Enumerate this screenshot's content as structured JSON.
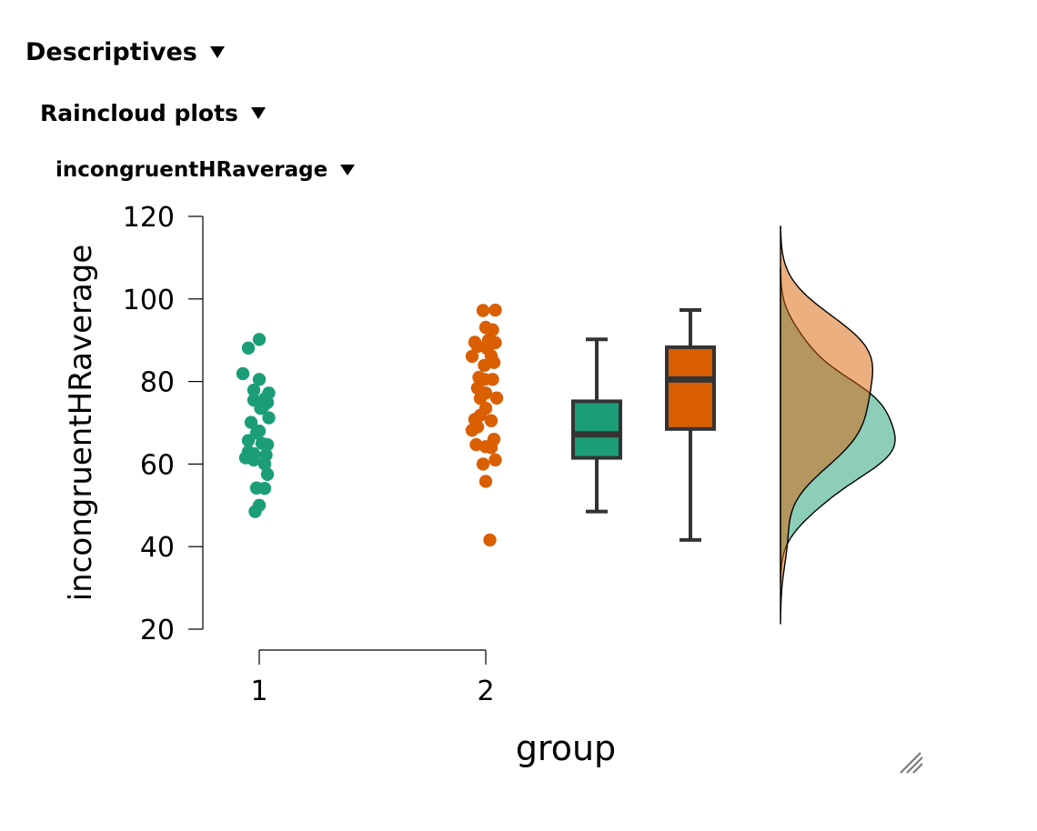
{
  "headers": {
    "descriptives": "Descriptives",
    "raincloud": "Raincloud plots",
    "variable": "incongruentHRaverage"
  },
  "icons": {
    "collapse": "triangle-down-icon",
    "resize": "resize-handle-icon"
  },
  "chart_data": {
    "type": "raincloud",
    "xlabel": "group",
    "ylabel": "incongruentHRaverage",
    "ylim": [
      20,
      120
    ],
    "yticks": [
      20,
      40,
      60,
      80,
      100,
      120
    ],
    "categories": [
      "1",
      "2"
    ],
    "grid": false,
    "legend": "none",
    "series": [
      {
        "color": "#1b9e77",
        "points": [
          [
            0.0,
            90.2
          ],
          [
            -0.4,
            88.1
          ],
          [
            -0.6,
            81.9
          ],
          [
            0.0,
            80.5
          ],
          [
            0.35,
            77.2
          ],
          [
            -0.2,
            77.9
          ],
          [
            -0.2,
            75.5
          ],
          [
            0.2,
            75.8
          ],
          [
            0.3,
            74.9
          ],
          [
            0.15,
            74.0
          ],
          [
            0.05,
            73.5
          ],
          [
            0.35,
            71.2
          ],
          [
            -0.3,
            70.1
          ],
          [
            0.0,
            68.0
          ],
          [
            -0.1,
            67.5
          ],
          [
            -0.4,
            65.7
          ],
          [
            0.1,
            65.0
          ],
          [
            0.3,
            64.7
          ],
          [
            -0.4,
            63.0
          ],
          [
            -0.2,
            62.5
          ],
          [
            0.25,
            62.2
          ],
          [
            -0.5,
            61.5
          ],
          [
            -0.2,
            61.0
          ],
          [
            0.2,
            60.0
          ],
          [
            0.3,
            57.5
          ],
          [
            0.2,
            54.1
          ],
          [
            -0.1,
            54.2
          ],
          [
            0.0,
            50.0
          ],
          [
            -0.15,
            48.5
          ]
        ],
        "box": {
          "min": 48.5,
          "q1": 61.5,
          "median": 67.2,
          "q3": 75.2,
          "max": 90.2
        }
      },
      {
        "color": "#d95f02",
        "points": [
          [
            -0.1,
            97.2
          ],
          [
            0.35,
            97.3
          ],
          [
            0.0,
            93.1
          ],
          [
            0.25,
            92.5
          ],
          [
            0.1,
            90.0
          ],
          [
            -0.4,
            89.5
          ],
          [
            0.35,
            89.4
          ],
          [
            -0.5,
            86.1
          ],
          [
            -0.3,
            88.5
          ],
          [
            0.05,
            88.0
          ],
          [
            0.2,
            86.2
          ],
          [
            0.3,
            84.6
          ],
          [
            -0.05,
            83.9
          ],
          [
            -0.25,
            81.0
          ],
          [
            -0.05,
            80.5
          ],
          [
            0.25,
            80.5
          ],
          [
            -0.3,
            78.4
          ],
          [
            0.0,
            77.2
          ],
          [
            0.4,
            76.0
          ],
          [
            -0.2,
            75.9
          ],
          [
            0.0,
            73.5
          ],
          [
            -0.2,
            71.8
          ],
          [
            -0.4,
            70.8
          ],
          [
            0.2,
            70.5
          ],
          [
            -0.3,
            69.0
          ],
          [
            -0.5,
            68.2
          ],
          [
            0.3,
            66.0
          ],
          [
            -0.35,
            64.7
          ],
          [
            0.0,
            64.2
          ],
          [
            0.2,
            64.0
          ],
          [
            0.35,
            61.0
          ],
          [
            -0.1,
            60.0
          ],
          [
            0.0,
            55.8
          ],
          [
            0.15,
            41.6
          ]
        ],
        "box": {
          "min": 41.6,
          "q1": 68.5,
          "median": 80.5,
          "q3": 88.3,
          "max": 97.3
        }
      }
    ]
  }
}
